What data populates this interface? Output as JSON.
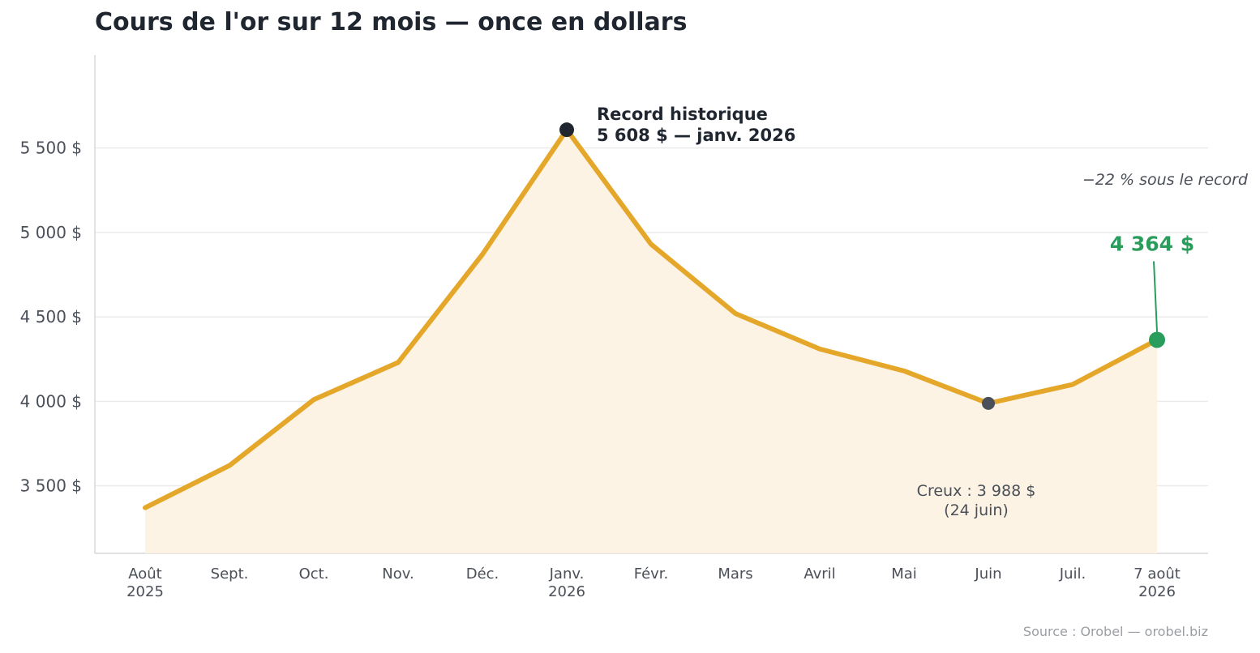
{
  "chart_data": {
    "type": "line",
    "title": "Cours de l'or sur 12 mois — once en dollars",
    "source": "Source : Orobel — orobel.biz",
    "categories": [
      [
        "Août",
        "2025"
      ],
      [
        "Sept."
      ],
      [
        "Oct."
      ],
      [
        "Nov."
      ],
      [
        "Déc."
      ],
      [
        "Janv.",
        "2026"
      ],
      [
        "Févr."
      ],
      [
        "Mars"
      ],
      [
        "Avril"
      ],
      [
        "Mai"
      ],
      [
        "Juin"
      ],
      [
        "Juil."
      ],
      [
        "7 août",
        "2026"
      ]
    ],
    "series": [
      {
        "values": [
          3370,
          3620,
          4010,
          4230,
          4870,
          5608,
          4930,
          4520,
          4310,
          4180,
          3988,
          4100,
          4364
        ]
      }
    ],
    "yticks": [
      3500,
      4000,
      4500,
      5000,
      5500
    ],
    "ytick_labels": [
      "3 500 $",
      "4 000 $",
      "4 500 $",
      "5 000 $",
      "5 500 $"
    ],
    "ylim": [
      3100,
      6050
    ],
    "grid": "horizontal",
    "annotations": {
      "record": {
        "index": 5,
        "line1": "Record historique",
        "line2": "5 608 $ — janv. 2026"
      },
      "low": {
        "index": 10,
        "line1": "Creux : 3 988 $",
        "line2": "(24 juin)"
      },
      "last": {
        "index": 12,
        "label": "4 364 $",
        "note": "−22 % sous le record"
      }
    },
    "colors": {
      "line": "#e5a72a",
      "fill": "#fcf3e5",
      "record_marker": "#1f2630",
      "low_marker": "#4a4f58",
      "last": "#2a9d5c",
      "text": "#4a4f58",
      "grid": "#ebebeb"
    }
  }
}
